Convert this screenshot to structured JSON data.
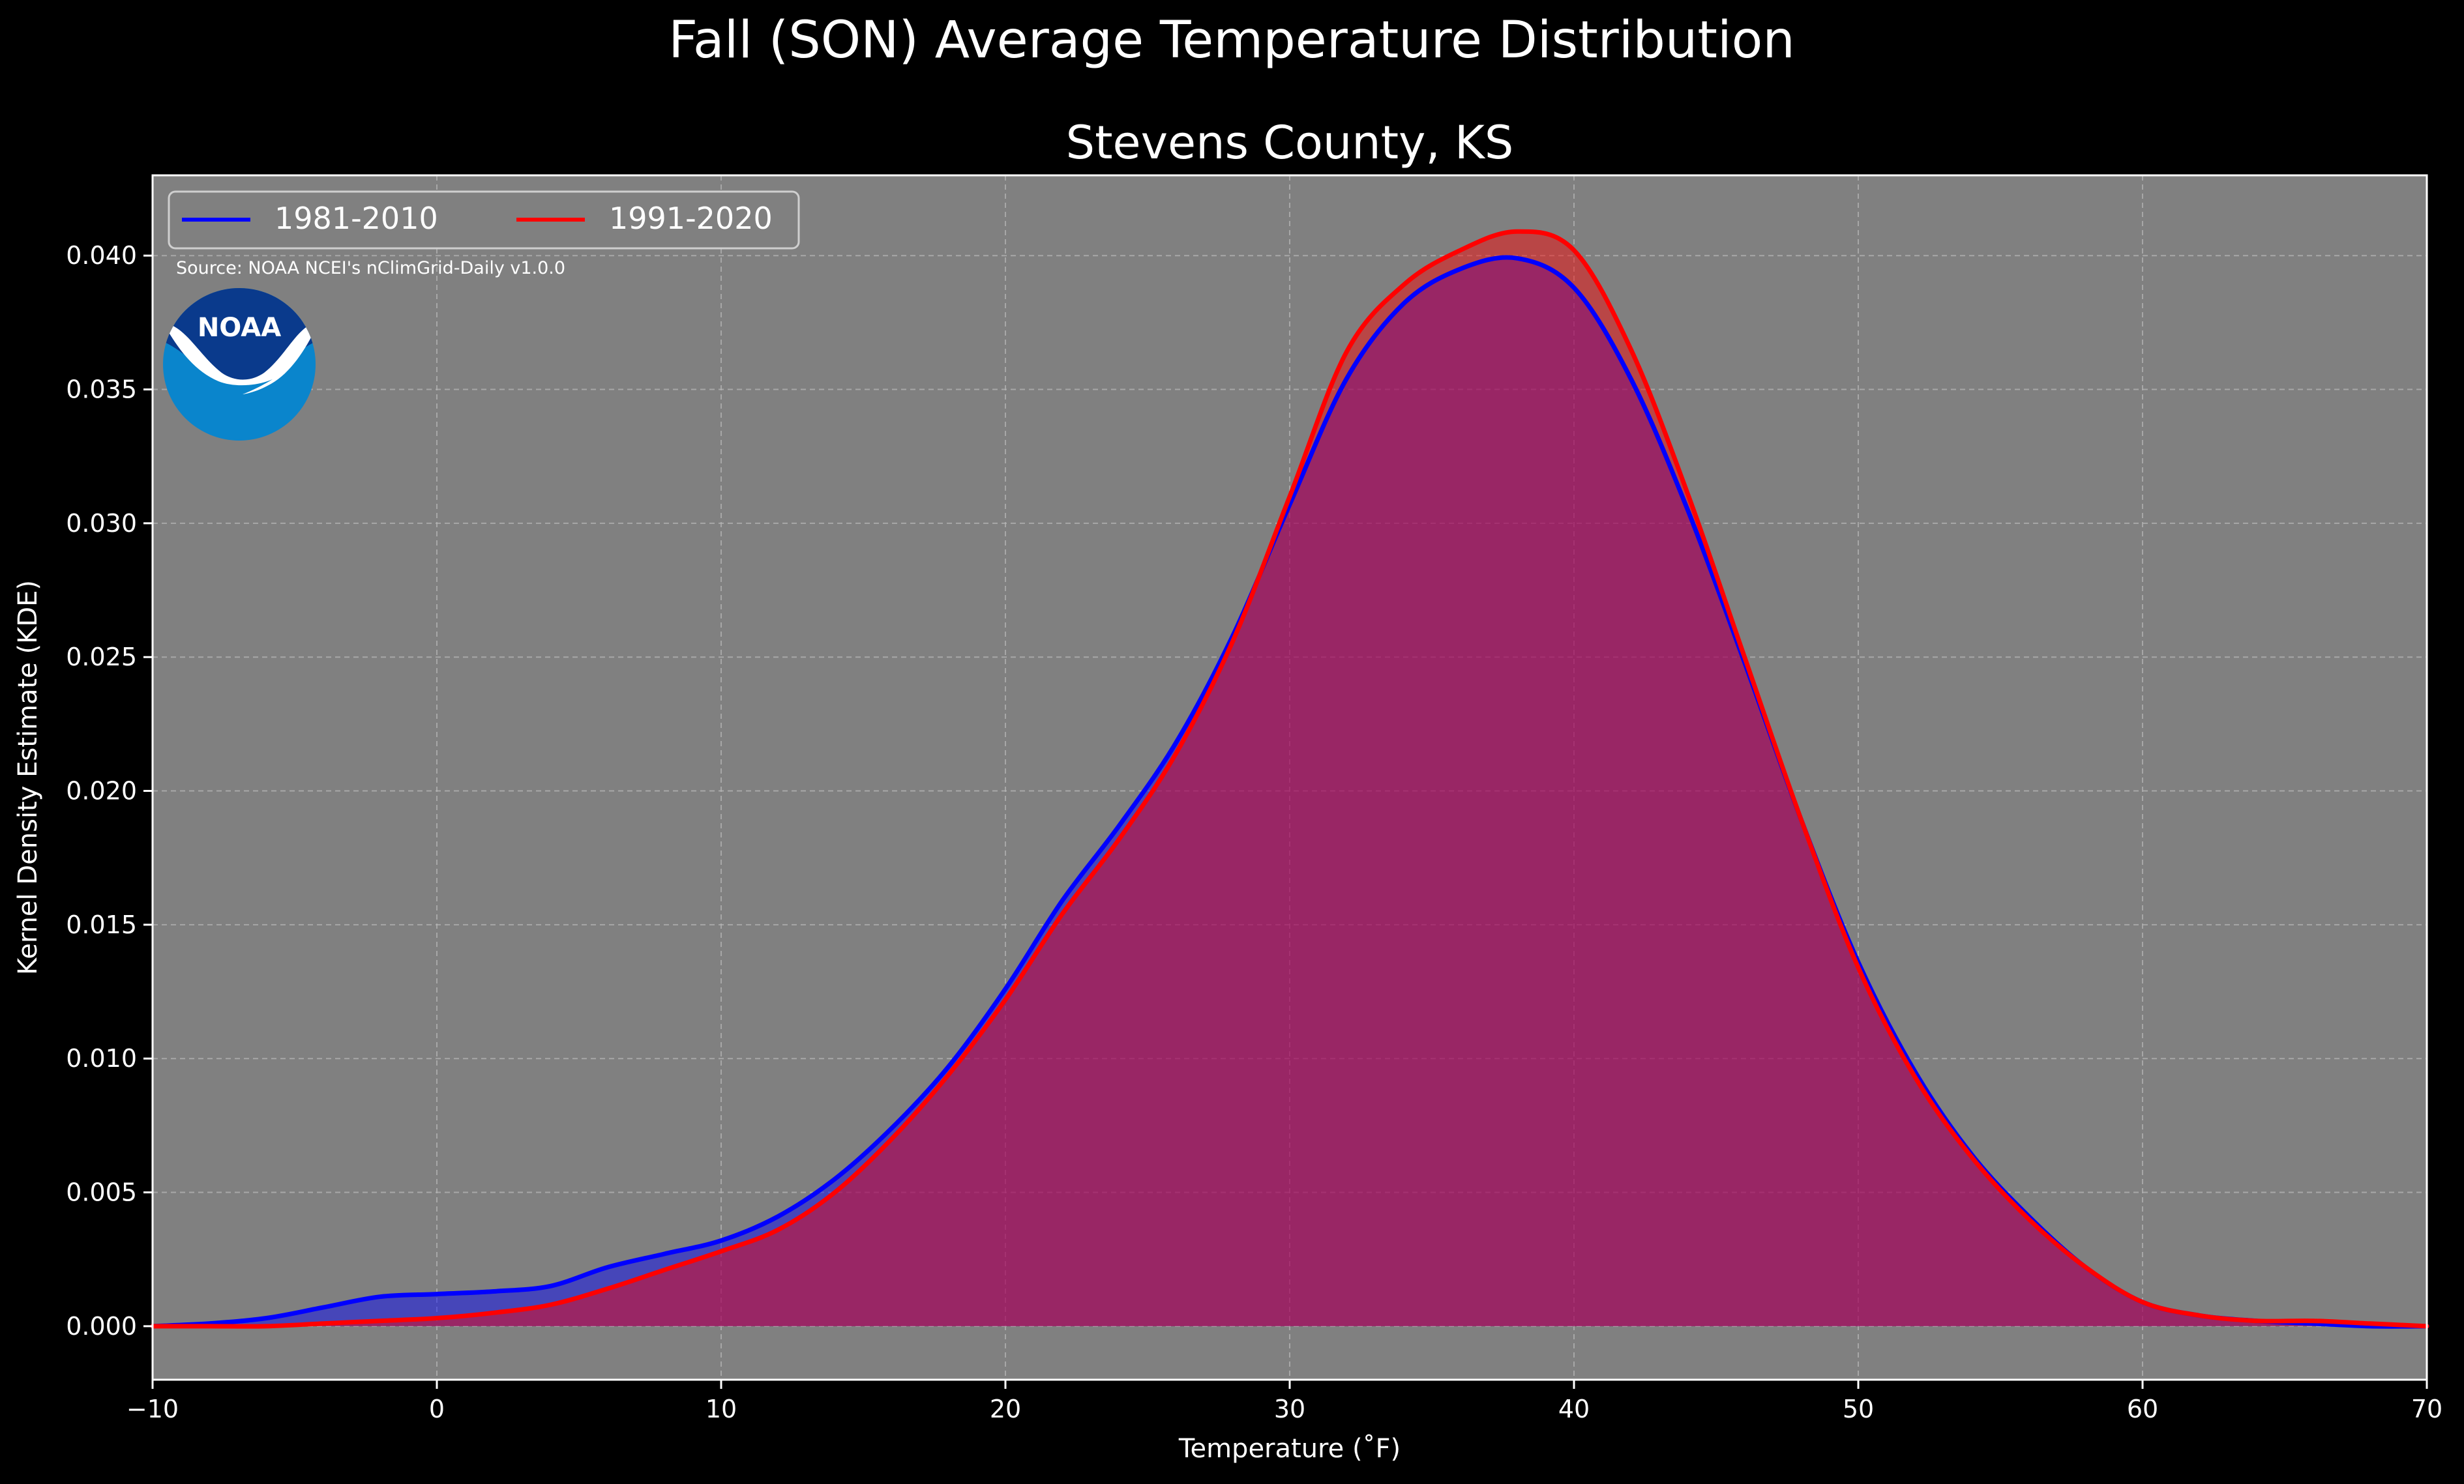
{
  "suptitle": "Fall (SON) Average Temperature Distribution",
  "source_note": "Source: NOAA NCEI's nClimGrid-Daily v1.0.0",
  "logo": {
    "name": "noaa-logo",
    "text": "NOAA",
    "colors": {
      "top": "#0a3a8c",
      "bottom": "#0a85cc",
      "bird": "#ffffff"
    }
  },
  "colors": {
    "background": "#000000",
    "plot_bg": "#808080",
    "text": "#ffffff",
    "grid": "#b8b8b8"
  },
  "chart_data": {
    "type": "area",
    "title": "Stevens County, KS",
    "xlabel": "Temperature (˚F)",
    "ylabel": "Kernel Density Estimate (KDE)",
    "xlim": [
      -10,
      70
    ],
    "ylim": [
      -0.002,
      0.043
    ],
    "xticks": [
      -10,
      0,
      10,
      20,
      30,
      40,
      50,
      60,
      70
    ],
    "xtick_labels": [
      "−10",
      "0",
      "10",
      "20",
      "30",
      "40",
      "50",
      "60",
      "70"
    ],
    "yticks": [
      0.0,
      0.005,
      0.01,
      0.015,
      0.02,
      0.025,
      0.03,
      0.035,
      0.04
    ],
    "ytick_labels": [
      "0.000",
      "0.005",
      "0.010",
      "0.015",
      "0.020",
      "0.025",
      "0.030",
      "0.035",
      "0.040"
    ],
    "grid": true,
    "legend_position": "top-left",
    "x": [
      -10,
      -8,
      -6,
      -4,
      -2,
      0,
      2,
      4,
      6,
      8,
      10,
      12,
      14,
      16,
      18,
      20,
      22,
      24,
      26,
      28,
      30,
      32,
      34,
      36,
      38,
      40,
      42,
      44,
      46,
      48,
      50,
      52,
      54,
      56,
      58,
      60,
      62,
      64,
      66,
      68,
      70
    ],
    "series": [
      {
        "name": "1981-2010",
        "color": "#0000ff",
        "values": [
          0.0,
          0.0001,
          0.0003,
          0.0007,
          0.0011,
          0.0012,
          0.0013,
          0.0015,
          0.0022,
          0.0027,
          0.0032,
          0.0041,
          0.0055,
          0.0074,
          0.0097,
          0.0126,
          0.0159,
          0.0187,
          0.0218,
          0.0258,
          0.0307,
          0.0354,
          0.0382,
          0.0395,
          0.0399,
          0.0388,
          0.0354,
          0.0305,
          0.0248,
          0.0189,
          0.0136,
          0.0095,
          0.0064,
          0.0041,
          0.0022,
          0.0009,
          0.0004,
          0.0002,
          0.0001,
          0.0,
          0.0
        ]
      },
      {
        "name": "1991-2020",
        "color": "#ff0000",
        "values": [
          0.0,
          0.0,
          0.0,
          0.0001,
          0.0002,
          0.0003,
          0.0005,
          0.0008,
          0.0014,
          0.0021,
          0.0028,
          0.0036,
          0.005,
          0.007,
          0.0094,
          0.0122,
          0.0154,
          0.0182,
          0.0214,
          0.0256,
          0.031,
          0.0364,
          0.0389,
          0.0402,
          0.0409,
          0.0402,
          0.0365,
          0.0311,
          0.025,
          0.0189,
          0.0134,
          0.0093,
          0.0063,
          0.004,
          0.0022,
          0.0009,
          0.0004,
          0.0002,
          0.0002,
          0.0001,
          0.0
        ]
      }
    ]
  }
}
